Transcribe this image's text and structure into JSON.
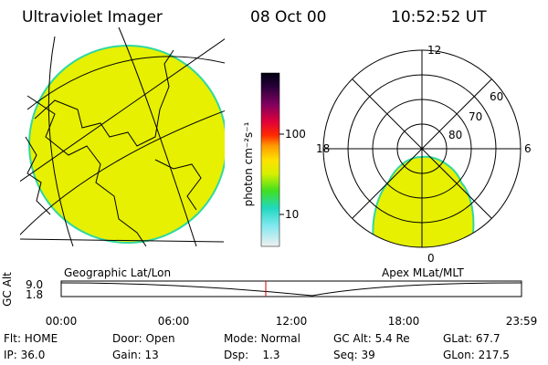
{
  "header": {
    "instrument": "Ultraviolet Imager",
    "date": "08 Oct 00",
    "time": "10:52:52 UT"
  },
  "colorbar": {
    "label": "photon cm⁻²s⁻¹",
    "ticks": [
      "100",
      "10"
    ]
  },
  "left_panel": {
    "caption": "Geographic Lat/Lon"
  },
  "right_panel": {
    "caption": "Apex MLat/MLT",
    "mlt_labels": [
      "12",
      "18",
      "6",
      "0"
    ],
    "mlat_labels": [
      "60",
      "70",
      "80"
    ]
  },
  "altitude_plot": {
    "ylabel": "GC Alt",
    "yticks": [
      "9.0",
      "1.8"
    ],
    "xticks": [
      "00:00",
      "06:00",
      "12:00",
      "18:00",
      "23:59"
    ]
  },
  "status": [
    [
      "Flt: HOME",
      "Door: Open",
      "Mode: Normal",
      "GC Alt: 5.4 Re",
      "GLat: 67.7"
    ],
    [
      "IP: 36.0",
      "Gain: 13",
      "Dsp:    1.3",
      "Seq: 39",
      "GLon: 217.5"
    ]
  ]
}
